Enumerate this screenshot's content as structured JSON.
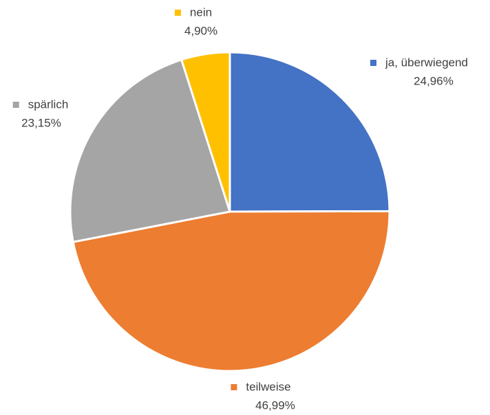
{
  "chart_data": {
    "type": "pie",
    "categories": [
      "ja, überwiegend",
      "teilweise",
      "spärlich",
      "nein"
    ],
    "values": [
      24.96,
      46.99,
      23.15,
      4.9
    ],
    "value_labels": [
      "24,96%",
      "46,99%",
      "23,15%",
      "4,90%"
    ],
    "colors": [
      "#4472c4",
      "#ed7d31",
      "#a5a5a5",
      "#ffc000"
    ]
  }
}
